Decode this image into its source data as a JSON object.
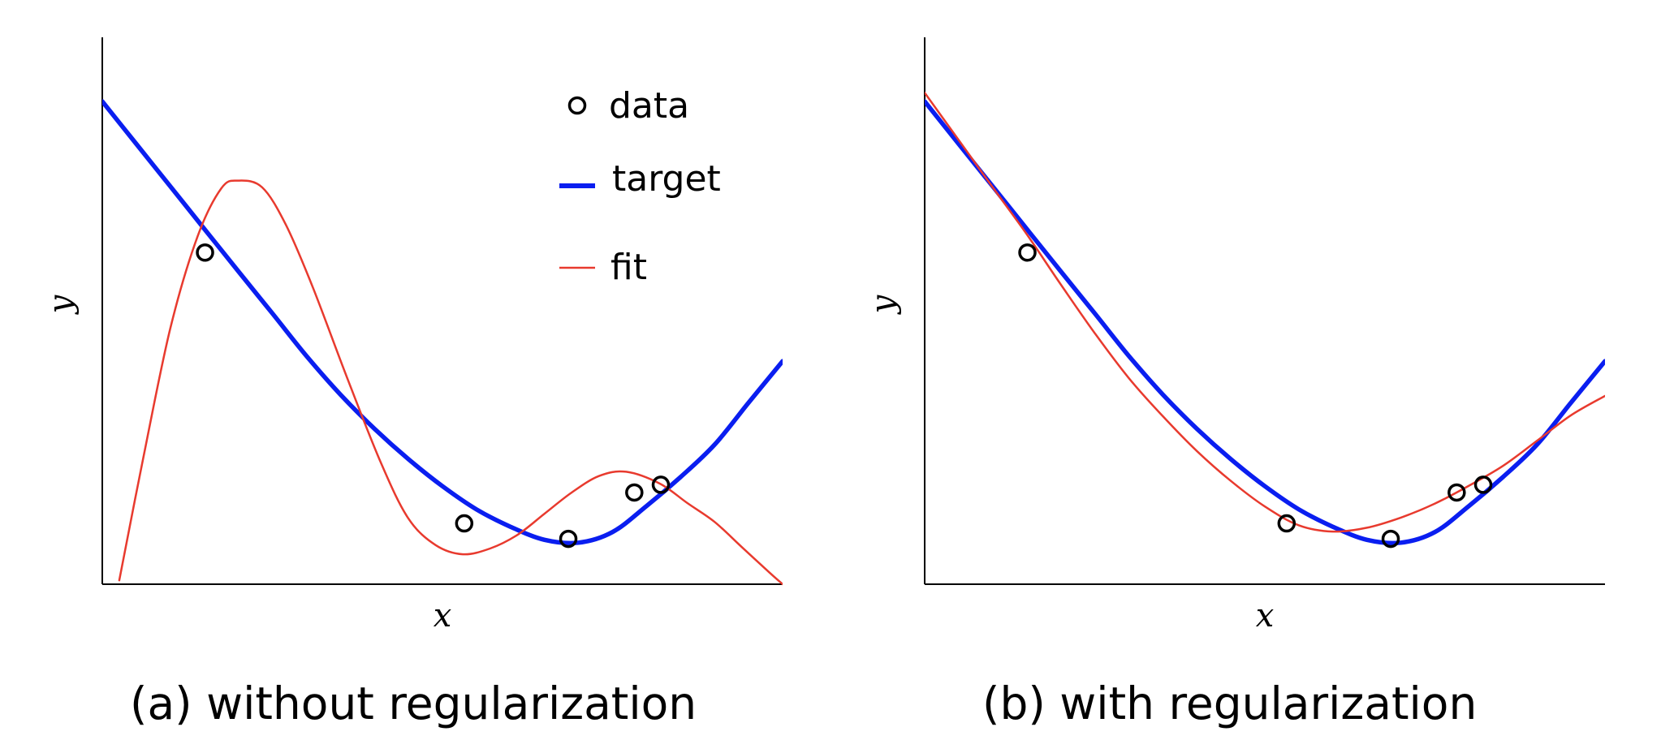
{
  "captions": {
    "a": "(a) without regularization",
    "b": "(b) with regularization"
  },
  "colors": {
    "target": "#0a1ef0",
    "fit": "#e83a2e",
    "data": "#000000",
    "axis": "#000000"
  },
  "legend": {
    "data": "data",
    "target": "target",
    "fit": "fit",
    "placement": "top-right"
  },
  "chart_data": [
    {
      "type": "line",
      "panel": "a",
      "xlabel": "x",
      "ylabel": "y",
      "xlim": [
        0,
        1
      ],
      "ylim": [
        0,
        1
      ],
      "grid": false,
      "show_legend": true,
      "series": [
        {
          "name": "target",
          "kind": "line",
          "x": [
            0,
            0.05,
            0.1,
            0.15,
            0.2,
            0.25,
            0.3,
            0.35,
            0.4,
            0.45,
            0.5,
            0.55,
            0.6,
            0.65,
            0.7,
            0.75,
            0.8,
            0.85,
            0.9,
            0.95,
            1.0
          ],
          "y": [
            1.0,
            0.912,
            0.824,
            0.736,
            0.648,
            0.561,
            0.473,
            0.393,
            0.322,
            0.259,
            0.203,
            0.155,
            0.119,
            0.092,
            0.086,
            0.108,
            0.162,
            0.222,
            0.289,
            0.376,
            0.462
          ]
        },
        {
          "name": "fit",
          "kind": "line",
          "x": [
            0.025,
            0.06,
            0.1,
            0.14,
            0.175,
            0.2,
            0.235,
            0.27,
            0.31,
            0.36,
            0.41,
            0.45,
            0.49,
            0.53,
            0.57,
            0.61,
            0.65,
            0.69,
            0.73,
            0.77,
            0.82,
            0.86,
            0.9,
            0.94,
            0.98,
            1.0
          ],
          "y": [
            0.008,
            0.26,
            0.53,
            0.72,
            0.82,
            0.836,
            0.822,
            0.744,
            0.613,
            0.427,
            0.25,
            0.136,
            0.081,
            0.062,
            0.074,
            0.102,
            0.146,
            0.19,
            0.224,
            0.233,
            0.208,
            0.168,
            0.129,
            0.077,
            0.025,
            0.0
          ]
        },
        {
          "name": "data",
          "kind": "scatter",
          "x": [
            0.151,
            0.532,
            0.685,
            0.782,
            0.821
          ],
          "y": [
            0.687,
            0.126,
            0.094,
            0.19,
            0.206
          ]
        }
      ]
    },
    {
      "type": "line",
      "panel": "b",
      "xlabel": "x",
      "ylabel": "y",
      "xlim": [
        0,
        1
      ],
      "ylim": [
        0,
        1
      ],
      "grid": false,
      "show_legend": false,
      "series": [
        {
          "name": "target",
          "kind": "line",
          "x": [
            0,
            0.05,
            0.1,
            0.15,
            0.2,
            0.25,
            0.3,
            0.35,
            0.4,
            0.45,
            0.5,
            0.55,
            0.6,
            0.65,
            0.7,
            0.75,
            0.8,
            0.85,
            0.9,
            0.95,
            1.0
          ],
          "y": [
            1.0,
            0.912,
            0.824,
            0.736,
            0.648,
            0.561,
            0.473,
            0.393,
            0.322,
            0.259,
            0.203,
            0.155,
            0.119,
            0.092,
            0.086,
            0.108,
            0.162,
            0.222,
            0.289,
            0.376,
            0.462
          ]
        },
        {
          "name": "fit",
          "kind": "line",
          "x": [
            0,
            0.05,
            0.1,
            0.15,
            0.2,
            0.25,
            0.3,
            0.35,
            0.4,
            0.45,
            0.5,
            0.55,
            0.6,
            0.65,
            0.7,
            0.75,
            0.8,
            0.85,
            0.9,
            0.95,
            1.0
          ],
          "y": [
            1.018,
            0.92,
            0.822,
            0.725,
            0.621,
            0.52,
            0.427,
            0.348,
            0.276,
            0.214,
            0.161,
            0.122,
            0.109,
            0.117,
            0.138,
            0.167,
            0.204,
            0.245,
            0.297,
            0.35,
            0.39
          ]
        },
        {
          "name": "data",
          "kind": "scatter",
          "x": [
            0.151,
            0.532,
            0.685,
            0.782,
            0.821
          ],
          "y": [
            0.687,
            0.126,
            0.094,
            0.19,
            0.206
          ]
        }
      ]
    }
  ]
}
